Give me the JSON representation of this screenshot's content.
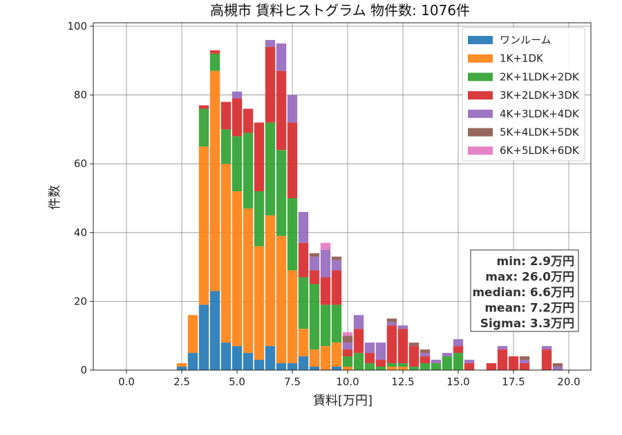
{
  "chart_data": {
    "type": "bar",
    "stacked": true,
    "title": "高槻市 賃料ヒストグラム 物件数: 1076件",
    "xlabel": "賃料[万円]",
    "ylabel": "件数",
    "xlim": [
      -1.5,
      21.0
    ],
    "ylim": [
      0,
      101
    ],
    "xticks": [
      "0.0",
      "2.5",
      "5.0",
      "7.5",
      "10.0",
      "12.5",
      "15.0",
      "17.5",
      "20.0"
    ],
    "yticks": [
      "0",
      "20",
      "40",
      "60",
      "80",
      "100"
    ],
    "grid": true,
    "bin_width": 0.5,
    "x": [
      2.5,
      3.0,
      3.5,
      4.0,
      4.5,
      5.0,
      5.5,
      6.0,
      6.5,
      7.0,
      7.5,
      8.0,
      8.5,
      9.0,
      9.5,
      10.0,
      10.5,
      11.0,
      11.5,
      12.0,
      12.5,
      13.0,
      13.5,
      14.0,
      14.5,
      15.0,
      15.5,
      16.0,
      16.5,
      17.0,
      17.5,
      18.0,
      18.5,
      19.0,
      19.5
    ],
    "series": [
      {
        "name": "ワンルーム",
        "color": "#1f77b4",
        "values": [
          1,
          5,
          19,
          23,
          8,
          7,
          5,
          3,
          7,
          2,
          2,
          4,
          1,
          0,
          1,
          0,
          0,
          0,
          0,
          0,
          0,
          0,
          0,
          0,
          0,
          0,
          0,
          0,
          0,
          0,
          0,
          0,
          0,
          0,
          0
        ]
      },
      {
        "name": "1K+1DK",
        "color": "#ff7f0e",
        "values": [
          1,
          11,
          46,
          64,
          52,
          45,
          42,
          33,
          38,
          37,
          27,
          8,
          5,
          7,
          7,
          1,
          0,
          0,
          0,
          1,
          1,
          0,
          0,
          0,
          0,
          0,
          0,
          0,
          0,
          0,
          0,
          0,
          0,
          0,
          0
        ]
      },
      {
        "name": "2K+1LDK+2DK",
        "color": "#2ca02c",
        "values": [
          0,
          0,
          11,
          5,
          10,
          16,
          22,
          16,
          27,
          25,
          21,
          15,
          19,
          12,
          11,
          3,
          5,
          2,
          1,
          1,
          1,
          1,
          2,
          2,
          4,
          5,
          0,
          0,
          0,
          0,
          0,
          0,
          0,
          0,
          0
        ]
      },
      {
        "name": "3K+2LDK+3DK",
        "color": "#d62728",
        "values": [
          0,
          0,
          1,
          1,
          8,
          11,
          7,
          20,
          22,
          23,
          22,
          10,
          4,
          8,
          10,
          2,
          7,
          3,
          2,
          11,
          10,
          6,
          2,
          0,
          0,
          2,
          2,
          0,
          2,
          6,
          4,
          2,
          0,
          6,
          0
        ]
      },
      {
        "name": "4K+3LDK+4DK",
        "color": "#9467bd",
        "values": [
          0,
          0,
          0,
          0,
          0,
          2,
          0,
          0,
          2,
          8,
          8,
          9,
          4,
          8,
          3,
          2,
          4,
          3,
          5,
          1,
          1,
          0,
          1,
          1,
          1,
          2,
          1,
          0,
          0,
          1,
          0,
          1,
          0,
          1,
          1
        ]
      },
      {
        "name": "5K+4LDK+5DK",
        "color": "#8c564b",
        "values": [
          0,
          0,
          0,
          0,
          0,
          0,
          0,
          0,
          0,
          0,
          0,
          0,
          1,
          0,
          1,
          2,
          0,
          0,
          0,
          1,
          0,
          1,
          1,
          0,
          0,
          0,
          0,
          0,
          0,
          0,
          0,
          1,
          0,
          0,
          1
        ]
      },
      {
        "name": "6K+5LDK+6DK",
        "color": "#e377c2",
        "values": [
          0,
          0,
          0,
          0,
          0,
          0,
          0,
          0,
          0,
          0,
          0,
          0,
          0,
          2,
          0,
          1,
          0,
          0,
          0,
          0,
          0,
          0,
          0,
          0,
          0,
          0,
          0,
          0,
          0,
          0,
          0,
          0,
          0,
          0,
          0
        ]
      }
    ],
    "legend_position": "top-right",
    "stats": {
      "min": "min: 2.9万円",
      "max": "max: 26.0万円",
      "median": "median: 6.6万円",
      "mean": "mean: 7.2万円",
      "sigma": "Sigma: 3.3万円"
    }
  }
}
